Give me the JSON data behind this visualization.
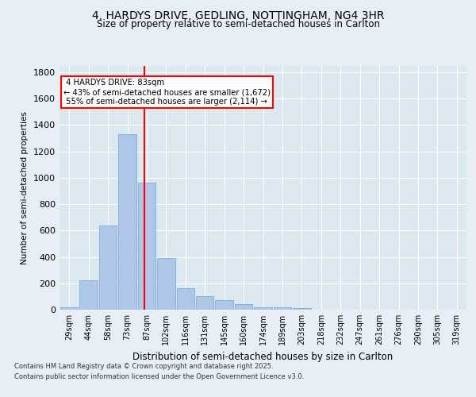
{
  "title1": "4, HARDYS DRIVE, GEDLING, NOTTINGHAM, NG4 3HR",
  "title2": "Size of property relative to semi-detached houses in Carlton",
  "xlabel": "Distribution of semi-detached houses by size in Carlton",
  "ylabel": "Number of semi-detached properties",
  "categories": [
    "29sqm",
    "44sqm",
    "58sqm",
    "73sqm",
    "87sqm",
    "102sqm",
    "116sqm",
    "131sqm",
    "145sqm",
    "160sqm",
    "174sqm",
    "189sqm",
    "203sqm",
    "218sqm",
    "232sqm",
    "247sqm",
    "261sqm",
    "276sqm",
    "290sqm",
    "305sqm",
    "319sqm"
  ],
  "values": [
    20,
    220,
    640,
    1330,
    960,
    390,
    160,
    100,
    70,
    40,
    20,
    20,
    10,
    0,
    0,
    0,
    0,
    0,
    0,
    0,
    0
  ],
  "bar_color": "#aec6e8",
  "bar_edge_color": "#7aafd4",
  "property_label": "4 HARDYS DRIVE: 83sqm",
  "pct_smaller": 43,
  "pct_larger": 55,
  "count_smaller": 1672,
  "count_larger": 2114,
  "vline_x_index": 3.87,
  "background_color": "#e8eef5",
  "plot_bg_color": "#dce8f0",
  "footer1": "Contains HM Land Registry data © Crown copyright and database right 2025.",
  "footer2": "Contains public sector information licensed under the Open Government Licence v3.0.",
  "ylim": [
    0,
    1850
  ],
  "yticks": [
    0,
    200,
    400,
    600,
    800,
    1000,
    1200,
    1400,
    1600,
    1800
  ]
}
